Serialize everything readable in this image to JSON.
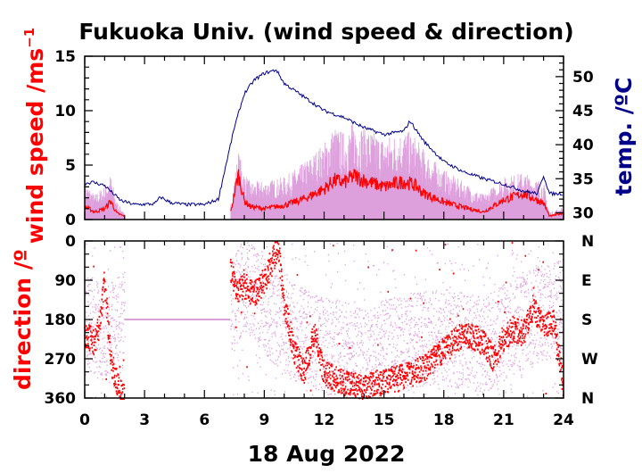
{
  "chart_data": [
    {
      "panel": "top",
      "type": "line",
      "title": "Fukuoka Univ. (wind speed & direction)",
      "xlabel": "18 Aug 2022",
      "x_ticks": [
        0,
        3,
        6,
        9,
        12,
        15,
        18,
        21,
        24
      ],
      "xlim": [
        0,
        24
      ],
      "ylabel_left": "wind speed /ms",
      "ylabel_left_sup": "−1",
      "ylim_left": [
        0,
        15
      ],
      "yticks_left": [
        0,
        5,
        10,
        15
      ],
      "ylabel_right": "temp. /ºC",
      "ylim_right": [
        29,
        53
      ],
      "yticks_right": [
        30,
        35,
        40,
        45,
        50
      ],
      "grid": false,
      "series": [
        {
          "axis": "left",
          "color": "#ff0000",
          "x": [
            0,
            0.5,
            1,
            1.3,
            1.6,
            2.0,
            7.3,
            7.7,
            8.0,
            8.3,
            9,
            10,
            11,
            12,
            12.5,
            13,
            13.5,
            14,
            15,
            16,
            16.5,
            17,
            18,
            19,
            20,
            21,
            22,
            23,
            23.3,
            24
          ],
          "y": [
            1.2,
            0.7,
            1.0,
            1.7,
            0.6,
            0.3,
            0.5,
            4.2,
            1.7,
            1.2,
            1.0,
            1.3,
            1.9,
            2.8,
            3.6,
            3.4,
            4.0,
            3.6,
            3.0,
            3.5,
            3.2,
            2.4,
            1.6,
            1.1,
            0.7,
            1.8,
            2.4,
            1.5,
            0.3,
            0.6
          ]
        },
        {
          "axis": "left",
          "color": "#dda0dd",
          "x": [
            0,
            0.5,
            1,
            1.3,
            1.6,
            2.0,
            7.3,
            7.7,
            8.0,
            8.3,
            9,
            10,
            11,
            12,
            12.5,
            13,
            13.5,
            14,
            15,
            16,
            16.5,
            17,
            18,
            19,
            20,
            21,
            22,
            23,
            23.3,
            24
          ],
          "y": [
            3.0,
            2.0,
            2.7,
            3.6,
            1.5,
            0.4,
            1.2,
            5.5,
            3.8,
            3.0,
            3.1,
            3.4,
            4.6,
            6.2,
            7.5,
            7.0,
            7.9,
            7.5,
            6.6,
            7.2,
            6.8,
            5.6,
            4.0,
            3.0,
            2.0,
            3.4,
            3.8,
            3.0,
            0.6,
            1.0
          ]
        },
        {
          "axis": "right",
          "color": "#00008b",
          "x": [
            0,
            0.4,
            1,
            1.8,
            2.5,
            3.5,
            3.8,
            4.3,
            5,
            6,
            6.7,
            7,
            7.5,
            8,
            8.5,
            9,
            9.6,
            10,
            11,
            12,
            13,
            14,
            15,
            16,
            16.3,
            17,
            18,
            19,
            20,
            21,
            22,
            22.7,
            23,
            23.3,
            24
          ],
          "y": [
            34.3,
            34.5,
            34.0,
            31.8,
            31.2,
            31.3,
            32.3,
            31.5,
            31.2,
            31.2,
            32.0,
            36.0,
            42.5,
            47.5,
            49.5,
            50.5,
            51.0,
            49.0,
            47.0,
            45.0,
            44.0,
            42.5,
            41.5,
            42.0,
            43.5,
            40.5,
            37.5,
            36.0,
            35.0,
            34.2,
            33.2,
            32.8,
            35.5,
            32.8,
            32.8
          ]
        }
      ]
    },
    {
      "panel": "bottom",
      "type": "scatter",
      "ylabel_left": "direction /º",
      "ylim": [
        0,
        360
      ],
      "yticks_left": [
        0,
        90,
        180,
        270,
        360
      ],
      "yticks_right_labels": [
        "N",
        "E",
        "S",
        "W",
        "N"
      ],
      "x_ticks": [
        0,
        3,
        6,
        9,
        12,
        15,
        18,
        21,
        24
      ],
      "xlim": [
        0,
        24
      ],
      "grid": false,
      "series": [
        {
          "color": "#ff0000",
          "x": [
            0,
            0.5,
            0.8,
            1.0,
            1.3,
            1.6,
            1.9,
            7.3,
            7.6,
            8,
            8.5,
            9,
            9.3,
            9.7,
            10,
            10.5,
            11,
            11.5,
            12,
            13,
            14,
            15,
            16,
            17,
            18,
            19,
            20,
            20.5,
            21,
            21.5,
            22,
            22.5,
            23,
            23.5,
            24
          ],
          "y": [
            210,
            230,
            180,
            80,
            270,
            320,
            355,
            60,
            110,
            100,
            120,
            90,
            60,
            10,
            140,
            250,
            300,
            210,
            300,
            325,
            335,
            320,
            310,
            290,
            250,
            210,
            230,
            270,
            220,
            200,
            210,
            150,
            200,
            180,
            330
          ]
        },
        {
          "color": "#dda0dd",
          "x": [
            0,
            1,
            2,
            6.5,
            7,
            8,
            10,
            12,
            14,
            16,
            18,
            20,
            22,
            24
          ],
          "y": [
            180,
            220,
            180,
            180,
            180,
            100,
            200,
            240,
            260,
            230,
            220,
            240,
            180,
            150
          ]
        }
      ]
    }
  ]
}
